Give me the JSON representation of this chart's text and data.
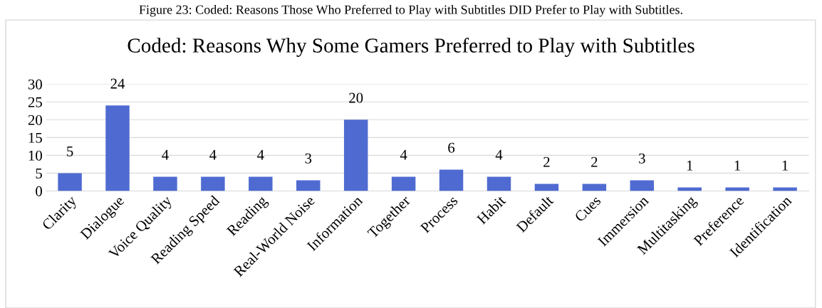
{
  "chart_data": {
    "type": "bar",
    "title": "Coded: Reasons Why Some Gamers Preferred to Play with Subtitles",
    "annotations": [
      "Figure 23: Coded: Reasons Those Who Preferred to Play with Subtitles DID Prefer to Play with Subtitles."
    ],
    "categories": [
      "Clarity",
      "Dialogue",
      "Voice Quality",
      "Reading Speed",
      "Reading",
      "Real-World Noise",
      "Information",
      "Together",
      "Process",
      "Habit",
      "Default",
      "Cues",
      "Immersion",
      "Multitasking",
      "Preference",
      "Identification"
    ],
    "values": [
      5,
      24,
      4,
      4,
      4,
      3,
      20,
      4,
      6,
      4,
      2,
      2,
      3,
      1,
      1,
      1
    ],
    "color": "#4f6bd1",
    "ylim": [
      0,
      30
    ],
    "yticks": [
      0,
      5,
      10,
      15,
      20,
      25,
      30
    ],
    "grid": "y",
    "data_labels": true,
    "legend": false
  }
}
